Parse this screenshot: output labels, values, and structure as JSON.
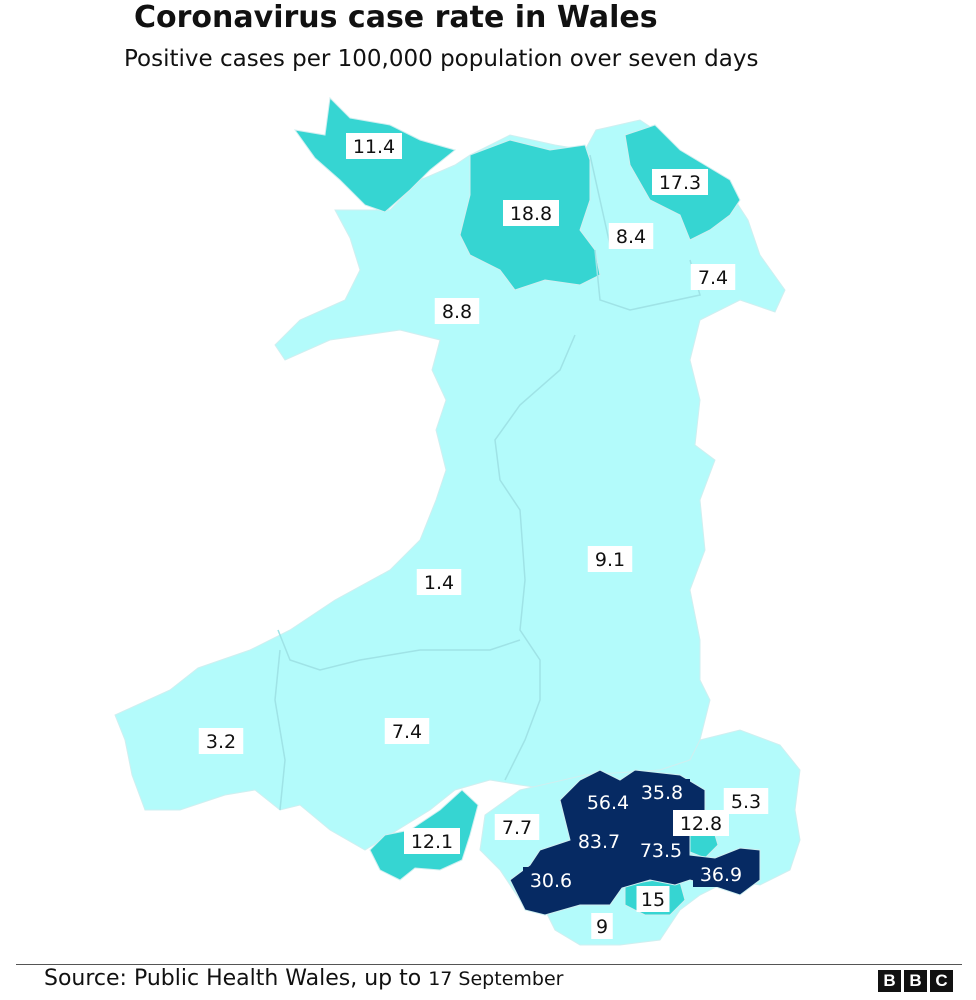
{
  "header": {
    "title": "Coronavirus case rate in Wales",
    "subtitle": "Positive cases per 100,000 population over seven days"
  },
  "footer": {
    "source_prefix": "Source: Public Health Wales, up to",
    "source_date": "17 September",
    "logo_letters": [
      "B",
      "B",
      "C"
    ]
  },
  "colors": {
    "low": "#b3fbfb",
    "medium": "#36d5d2",
    "high": "#062a63",
    "border": "#cfeff0"
  },
  "regions": [
    {
      "id": "anglesey",
      "value": "11.4",
      "level": "medium"
    },
    {
      "id": "conwy",
      "value": "18.8",
      "level": "medium"
    },
    {
      "id": "denbighshire",
      "value": "8.4",
      "level": "low"
    },
    {
      "id": "flintshire",
      "value": "17.3",
      "level": "medium"
    },
    {
      "id": "wrexham",
      "value": "7.4",
      "level": "low"
    },
    {
      "id": "gwynedd",
      "value": "8.8",
      "level": "low"
    },
    {
      "id": "powys",
      "value": "9.1",
      "level": "low"
    },
    {
      "id": "ceredigion",
      "value": "1.4",
      "level": "low"
    },
    {
      "id": "pembrokeshire",
      "value": "3.2",
      "level": "low"
    },
    {
      "id": "carmarthenshire",
      "value": "7.4",
      "level": "low"
    },
    {
      "id": "swansea",
      "value": "12.1",
      "level": "medium"
    },
    {
      "id": "neath-port-talbot",
      "value": "7.7",
      "level": "low"
    },
    {
      "id": "bridgend",
      "value": "30.6",
      "level": "high"
    },
    {
      "id": "rhondda-cynon-taf",
      "value": "83.7",
      "level": "high"
    },
    {
      "id": "merthyr-tydfil",
      "value": "56.4",
      "level": "high"
    },
    {
      "id": "caerphilly",
      "value": "73.5",
      "level": "high"
    },
    {
      "id": "blaenau-gwent",
      "value": "35.8",
      "level": "high"
    },
    {
      "id": "torfaen",
      "value": "12.8",
      "level": "medium"
    },
    {
      "id": "monmouthshire",
      "value": "5.3",
      "level": "low"
    },
    {
      "id": "newport",
      "value": "36.9",
      "level": "high"
    },
    {
      "id": "cardiff",
      "value": "15",
      "level": "medium"
    },
    {
      "id": "vale-of-glamorgan",
      "value": "9",
      "level": "low"
    }
  ]
}
